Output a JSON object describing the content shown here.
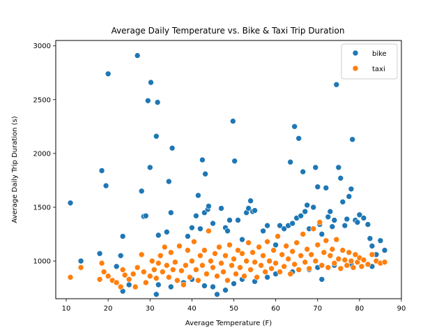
{
  "chart_data": {
    "type": "scatter",
    "title": "Average Daily Temperature vs. Bike & Taxi Trip Duration",
    "xlabel": "Average Temperature (F)",
    "ylabel": "Average Daily Trip Duration (s)",
    "xlim": [
      7.5,
      90
    ],
    "ylim": [
      650,
      3050
    ],
    "xticks": [
      10,
      20,
      30,
      40,
      50,
      60,
      70,
      80,
      90
    ],
    "yticks": [
      1000,
      1500,
      2000,
      2500,
      3000
    ],
    "legend_position": "top-right",
    "grid": false,
    "series": [
      {
        "name": "bike",
        "color": "#1f77b4",
        "points": [
          [
            11,
            1540
          ],
          [
            13.5,
            1000
          ],
          [
            18,
            1070
          ],
          [
            18.5,
            1840
          ],
          [
            19.5,
            1700
          ],
          [
            20,
            2740
          ],
          [
            22,
            950
          ],
          [
            23,
            1050
          ],
          [
            23.5,
            1230
          ],
          [
            27,
            2910
          ],
          [
            28,
            1650
          ],
          [
            28.5,
            1415
          ],
          [
            29,
            1420
          ],
          [
            29.5,
            2490
          ],
          [
            30,
            1870
          ],
          [
            30.2,
            2660
          ],
          [
            31.5,
            2160
          ],
          [
            31.8,
            2475
          ],
          [
            32,
            1240
          ],
          [
            34,
            1270
          ],
          [
            34.5,
            1740
          ],
          [
            35,
            1450
          ],
          [
            35.3,
            2050
          ],
          [
            39,
            1230
          ],
          [
            40,
            1310
          ],
          [
            41,
            1420
          ],
          [
            41.5,
            1610
          ],
          [
            42,
            1300
          ],
          [
            42.5,
            1940
          ],
          [
            43,
            1450
          ],
          [
            43.2,
            1810
          ],
          [
            43.8,
            1480
          ],
          [
            44,
            1510
          ],
          [
            45,
            1350
          ],
          [
            47,
            1490
          ],
          [
            48,
            1310
          ],
          [
            48.5,
            1280
          ],
          [
            49,
            1380
          ],
          [
            49.8,
            2300
          ],
          [
            50.2,
            1930
          ],
          [
            51,
            1380
          ],
          [
            52,
            1200
          ],
          [
            53,
            1450
          ],
          [
            53.5,
            1490
          ],
          [
            54,
            1560
          ],
          [
            54.5,
            1460
          ],
          [
            55,
            1470
          ],
          [
            57,
            1280
          ],
          [
            58,
            1330
          ],
          [
            60,
            1150
          ],
          [
            61,
            1330
          ],
          [
            62,
            1300
          ],
          [
            63,
            1330
          ],
          [
            63.5,
            1920
          ],
          [
            64,
            1350
          ],
          [
            64.5,
            2250
          ],
          [
            65,
            1400
          ],
          [
            65.5,
            2140
          ],
          [
            66,
            1420
          ],
          [
            66.5,
            1830
          ],
          [
            67,
            1460
          ],
          [
            67.5,
            1520
          ],
          [
            68,
            1300
          ],
          [
            69,
            1500
          ],
          [
            69.5,
            1870
          ],
          [
            70,
            1690
          ],
          [
            70.5,
            1340
          ],
          [
            71,
            1250
          ],
          [
            72,
            1680
          ],
          [
            72.5,
            1410
          ],
          [
            73,
            1460
          ],
          [
            73.5,
            1320
          ],
          [
            74,
            1380
          ],
          [
            74.5,
            2640
          ],
          [
            75,
            1870
          ],
          [
            75.5,
            1770
          ],
          [
            76,
            1550
          ],
          [
            76.5,
            1330
          ],
          [
            77,
            1390
          ],
          [
            77.5,
            1600
          ],
          [
            78,
            1670
          ],
          [
            78.3,
            2130
          ],
          [
            79,
            1380
          ],
          [
            79.5,
            1360
          ],
          [
            80,
            1430
          ],
          [
            81,
            1400
          ],
          [
            82,
            1340
          ],
          [
            82.5,
            1210
          ],
          [
            83,
            1140
          ],
          [
            84,
            1060
          ],
          [
            85,
            1190
          ],
          [
            86,
            1100
          ],
          [
            23.5,
            720
          ],
          [
            25,
            780
          ],
          [
            31.5,
            690
          ],
          [
            32,
            780
          ],
          [
            35,
            760
          ],
          [
            38,
            800
          ],
          [
            40,
            830
          ],
          [
            43,
            770
          ],
          [
            45,
            760
          ],
          [
            46,
            690
          ],
          [
            48,
            730
          ],
          [
            50,
            790
          ],
          [
            52,
            830
          ],
          [
            55,
            810
          ],
          [
            58,
            850
          ],
          [
            60,
            880
          ],
          [
            64,
            900
          ],
          [
            68,
            920
          ],
          [
            70,
            940
          ],
          [
            71,
            830
          ],
          [
            74,
            960
          ],
          [
            78,
            970
          ],
          [
            83,
            950
          ]
        ]
      },
      {
        "name": "taxi",
        "color": "#ff7f0e",
        "points": [
          [
            11,
            850
          ],
          [
            13.5,
            940
          ],
          [
            18,
            830
          ],
          [
            18.5,
            980
          ],
          [
            19,
            900
          ],
          [
            20,
            860
          ],
          [
            21,
            820
          ],
          [
            22,
            800
          ],
          [
            23,
            760
          ],
          [
            23.5,
            920
          ],
          [
            24,
            870
          ],
          [
            25,
            830
          ],
          [
            26,
            880
          ],
          [
            26.5,
            760
          ],
          [
            27,
            940
          ],
          [
            28,
            1060
          ],
          [
            28.5,
            900
          ],
          [
            29,
            800
          ],
          [
            30,
            860
          ],
          [
            30.5,
            1000
          ],
          [
            31,
            920
          ],
          [
            31.5,
            840
          ],
          [
            32,
            980
          ],
          [
            32.5,
            1050
          ],
          [
            33,
            900
          ],
          [
            33.5,
            1130
          ],
          [
            34,
            960
          ],
          [
            34.5,
            850
          ],
          [
            35,
            1080
          ],
          [
            35.5,
            920
          ],
          [
            36,
            990
          ],
          [
            36.5,
            820
          ],
          [
            37,
            1140
          ],
          [
            37.5,
            910
          ],
          [
            38,
            780
          ],
          [
            38.5,
            960
          ],
          [
            39,
            1100
          ],
          [
            39.5,
            850
          ],
          [
            40,
            1000
          ],
          [
            40.5,
            1180
          ],
          [
            41,
            920
          ],
          [
            41.5,
            820
          ],
          [
            42,
            1050
          ],
          [
            42.5,
            960
          ],
          [
            43,
            1100
          ],
          [
            43.5,
            880
          ],
          [
            44,
            1280
          ],
          [
            44.5,
            1000
          ],
          [
            45,
            940
          ],
          [
            45.5,
            1070
          ],
          [
            46,
            860
          ],
          [
            46.5,
            1130
          ],
          [
            47,
            980
          ],
          [
            47.5,
            900
          ],
          [
            48,
            1050
          ],
          [
            48.5,
            820
          ],
          [
            49,
            1150
          ],
          [
            49.5,
            960
          ],
          [
            50,
            1020
          ],
          [
            50.5,
            880
          ],
          [
            51,
            1100
          ],
          [
            51.5,
            940
          ],
          [
            52,
            1070
          ],
          [
            52.5,
            860
          ],
          [
            53,
            1000
          ],
          [
            53.5,
            1170
          ],
          [
            54,
            920
          ],
          [
            54.5,
            1080
          ],
          [
            55,
            990
          ],
          [
            55.5,
            850
          ],
          [
            56,
            1130
          ],
          [
            56.5,
            960
          ],
          [
            57,
            1050
          ],
          [
            57.5,
            900
          ],
          [
            58,
            1180
          ],
          [
            58.5,
            1000
          ],
          [
            59,
            930
          ],
          [
            59.5,
            1100
          ],
          [
            60,
            980
          ],
          [
            60.5,
            1230
          ],
          [
            61,
            900
          ],
          [
            61.5,
            1060
          ],
          [
            62,
            950
          ],
          [
            62.5,
            1140
          ],
          [
            63,
            1020
          ],
          [
            63.5,
            880
          ],
          [
            64,
            1090
          ],
          [
            64.5,
            970
          ],
          [
            65,
            1170
          ],
          [
            65.5,
            920
          ],
          [
            66,
            1050
          ],
          [
            66.5,
            1250
          ],
          [
            67,
            990
          ],
          [
            67.5,
            1110
          ],
          [
            68,
            930
          ],
          [
            68.5,
            1060
          ],
          [
            69,
            1300
          ],
          [
            69.5,
            1000
          ],
          [
            70,
            1150
          ],
          [
            70.5,
            1360
          ],
          [
            71,
            960
          ],
          [
            71.5,
            1080
          ],
          [
            72,
            1190
          ],
          [
            72.5,
            940
          ],
          [
            73,
            1050
          ],
          [
            73.5,
            1110
          ],
          [
            74,
            980
          ],
          [
            74.5,
            1200
          ],
          [
            75,
            1020
          ],
          [
            75.5,
            930
          ],
          [
            76,
            1100
          ],
          [
            76.5,
            1010
          ],
          [
            77,
            960
          ],
          [
            77.5,
            1080
          ],
          [
            78,
            1000
          ],
          [
            78.5,
            940
          ],
          [
            79,
            1060
          ],
          [
            79.5,
            990
          ],
          [
            80,
            1030
          ],
          [
            80.5,
            950
          ],
          [
            81,
            1010
          ],
          [
            82,
            970
          ],
          [
            83,
            1060
          ],
          [
            84,
            1000
          ],
          [
            85,
            980
          ],
          [
            86,
            990
          ]
        ]
      }
    ]
  }
}
